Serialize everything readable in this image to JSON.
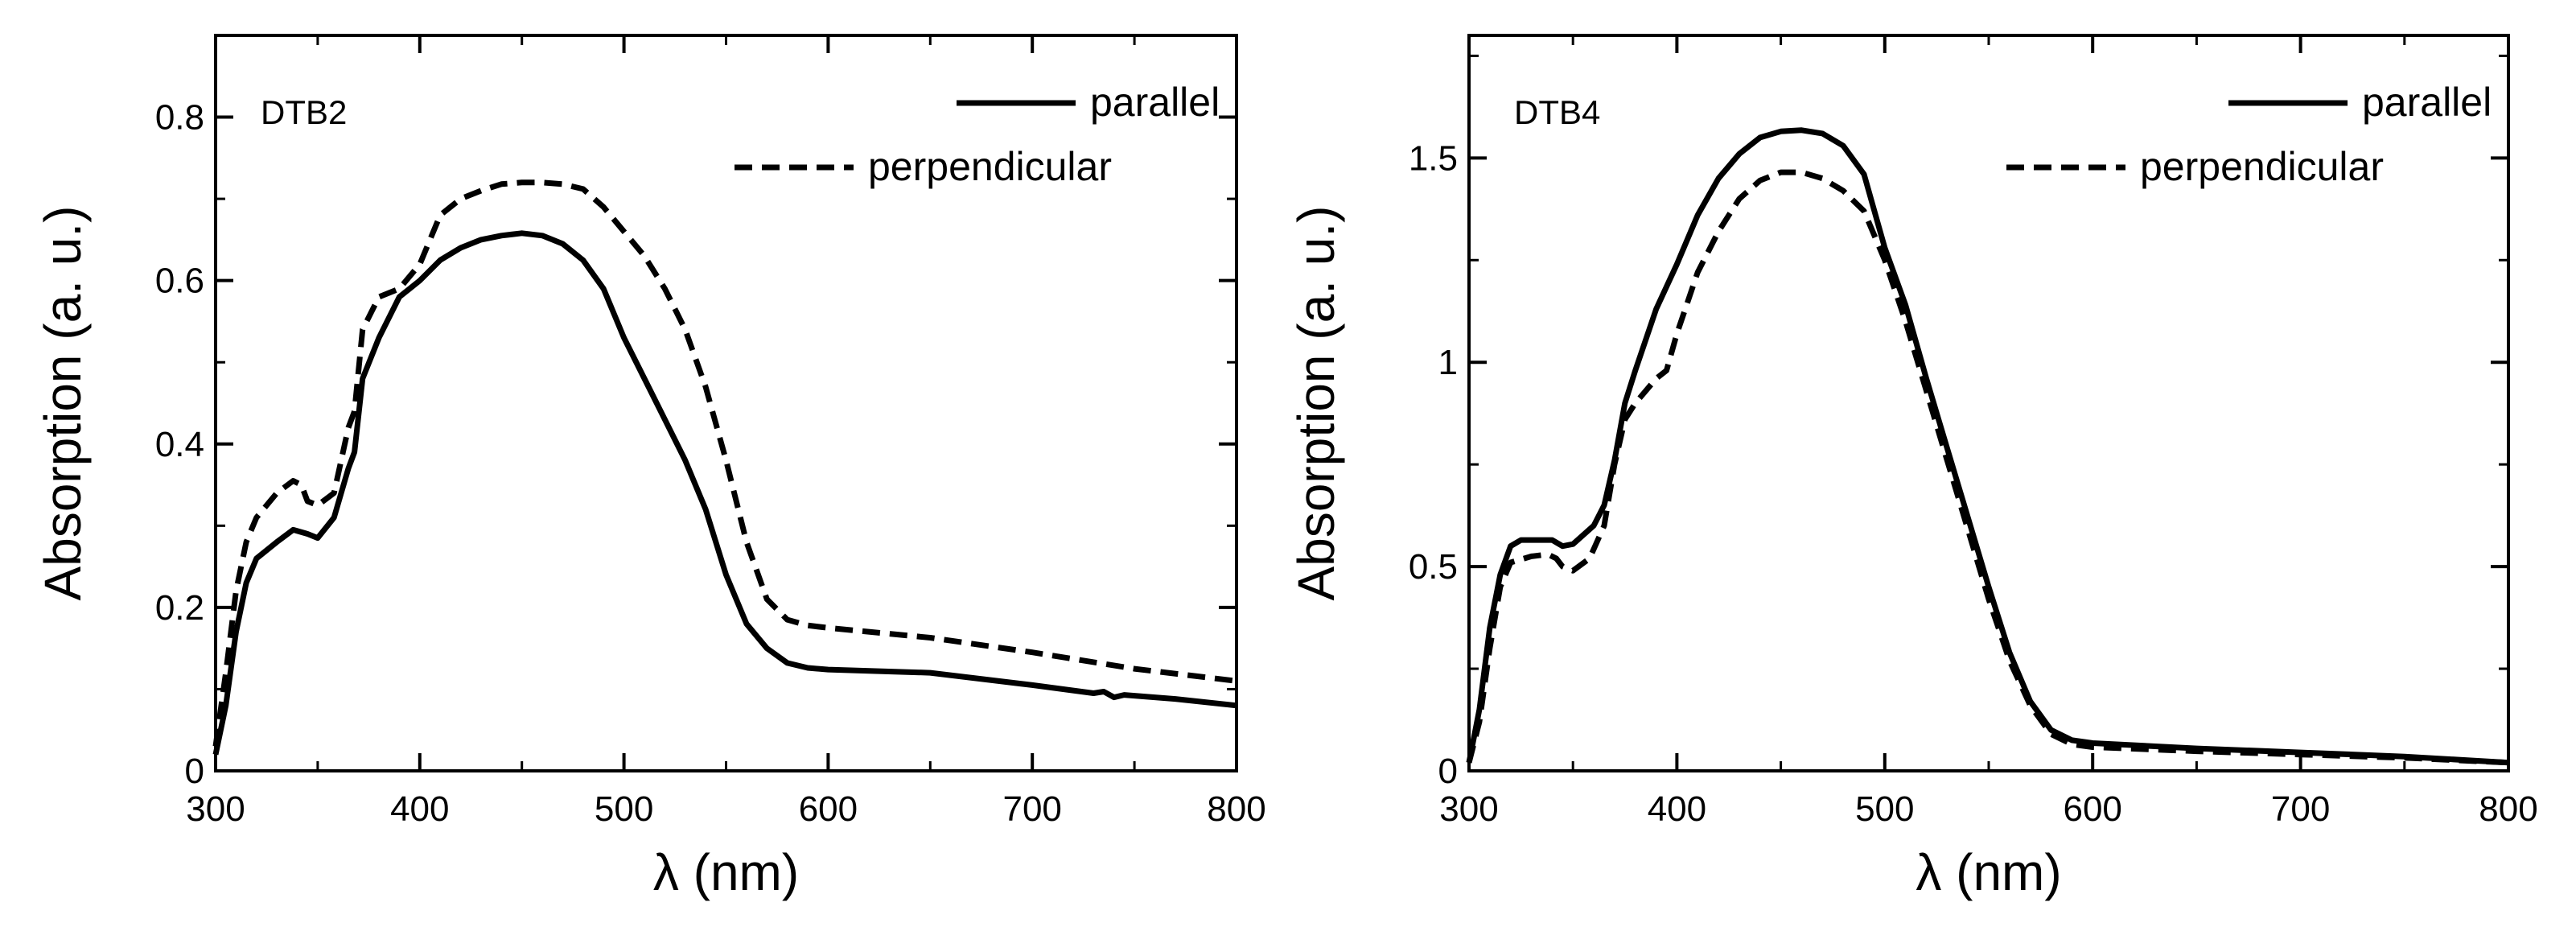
{
  "chart_data": [
    {
      "type": "line",
      "panel_label": "DTB2",
      "xlabel": "λ (nm)",
      "ylabel": "Absorption (a. u.)",
      "xlim": [
        300,
        800
      ],
      "ylim": [
        0,
        0.9
      ],
      "xticks": [
        300,
        400,
        500,
        600,
        700,
        800
      ],
      "xtick_labels": [
        "300",
        "400",
        "500",
        "600",
        "700",
        "800"
      ],
      "yticks": [
        0,
        0.2,
        0.4,
        0.6,
        0.8
      ],
      "ytick_labels": [
        "0",
        "0.2",
        "0.4",
        "0.6",
        "0.8"
      ],
      "grid": false,
      "legend_position": "top-right",
      "series": [
        {
          "name": "parallel",
          "style": "solid",
          "color": "#000000",
          "points": [
            [
              300,
              0.02
            ],
            [
              305,
              0.08
            ],
            [
              310,
              0.17
            ],
            [
              315,
              0.23
            ],
            [
              320,
              0.26
            ],
            [
              330,
              0.28
            ],
            [
              338,
              0.295
            ],
            [
              345,
              0.29
            ],
            [
              350,
              0.285
            ],
            [
              358,
              0.31
            ],
            [
              365,
              0.37
            ],
            [
              368,
              0.39
            ],
            [
              372,
              0.48
            ],
            [
              380,
              0.53
            ],
            [
              390,
              0.58
            ],
            [
              400,
              0.6
            ],
            [
              410,
              0.625
            ],
            [
              420,
              0.64
            ],
            [
              430,
              0.65
            ],
            [
              440,
              0.655
            ],
            [
              450,
              0.658
            ],
            [
              460,
              0.655
            ],
            [
              470,
              0.645
            ],
            [
              480,
              0.625
            ],
            [
              490,
              0.59
            ],
            [
              500,
              0.53
            ],
            [
              510,
              0.48
            ],
            [
              520,
              0.43
            ],
            [
              530,
              0.38
            ],
            [
              540,
              0.32
            ],
            [
              550,
              0.24
            ],
            [
              560,
              0.18
            ],
            [
              570,
              0.15
            ],
            [
              580,
              0.132
            ],
            [
              590,
              0.126
            ],
            [
              600,
              0.124
            ],
            [
              650,
              0.12
            ],
            [
              700,
              0.105
            ],
            [
              730,
              0.095
            ],
            [
              735,
              0.097
            ],
            [
              740,
              0.09
            ],
            [
              745,
              0.093
            ],
            [
              770,
              0.088
            ],
            [
              800,
              0.08
            ]
          ]
        },
        {
          "name": "perpendicular",
          "style": "dashed",
          "color": "#000000",
          "points": [
            [
              300,
              0.03
            ],
            [
              305,
              0.12
            ],
            [
              310,
              0.22
            ],
            [
              315,
              0.28
            ],
            [
              320,
              0.31
            ],
            [
              330,
              0.34
            ],
            [
              338,
              0.355
            ],
            [
              342,
              0.35
            ],
            [
              345,
              0.33
            ],
            [
              350,
              0.325
            ],
            [
              358,
              0.34
            ],
            [
              365,
              0.42
            ],
            [
              368,
              0.44
            ],
            [
              372,
              0.54
            ],
            [
              380,
              0.58
            ],
            [
              390,
              0.59
            ],
            [
              400,
              0.62
            ],
            [
              410,
              0.68
            ],
            [
              420,
              0.7
            ],
            [
              430,
              0.71
            ],
            [
              440,
              0.718
            ],
            [
              450,
              0.72
            ],
            [
              460,
              0.72
            ],
            [
              470,
              0.718
            ],
            [
              480,
              0.712
            ],
            [
              490,
              0.69
            ],
            [
              500,
              0.66
            ],
            [
              510,
              0.63
            ],
            [
              520,
              0.59
            ],
            [
              530,
              0.54
            ],
            [
              540,
              0.47
            ],
            [
              550,
              0.38
            ],
            [
              560,
              0.28
            ],
            [
              570,
              0.21
            ],
            [
              580,
              0.185
            ],
            [
              590,
              0.178
            ],
            [
              600,
              0.175
            ],
            [
              650,
              0.163
            ],
            [
              700,
              0.145
            ],
            [
              750,
              0.125
            ],
            [
              800,
              0.11
            ]
          ]
        }
      ]
    },
    {
      "type": "line",
      "panel_label": "DTB4",
      "xlabel": "λ (nm)",
      "ylabel": "Absorption (a. u.)",
      "xlim": [
        300,
        800
      ],
      "ylim": [
        0,
        1.8
      ],
      "xticks": [
        300,
        400,
        500,
        600,
        700,
        800
      ],
      "xtick_labels": [
        "300",
        "400",
        "500",
        "600",
        "700",
        "800"
      ],
      "yticks": [
        0,
        0.5,
        1.0,
        1.5
      ],
      "ytick_labels": [
        "0",
        "0.5",
        "1",
        "1.5"
      ],
      "grid": false,
      "legend_position": "top-right",
      "series": [
        {
          "name": "parallel",
          "style": "solid",
          "color": "#000000",
          "points": [
            [
              300,
              0.02
            ],
            [
              305,
              0.15
            ],
            [
              310,
              0.35
            ],
            [
              315,
              0.48
            ],
            [
              320,
              0.55
            ],
            [
              325,
              0.565
            ],
            [
              335,
              0.565
            ],
            [
              340,
              0.565
            ],
            [
              345,
              0.55
            ],
            [
              350,
              0.555
            ],
            [
              360,
              0.6
            ],
            [
              365,
              0.65
            ],
            [
              370,
              0.76
            ],
            [
              375,
              0.9
            ],
            [
              380,
              0.98
            ],
            [
              390,
              1.13
            ],
            [
              400,
              1.24
            ],
            [
              410,
              1.36
            ],
            [
              420,
              1.45
            ],
            [
              430,
              1.51
            ],
            [
              440,
              1.55
            ],
            [
              450,
              1.565
            ],
            [
              460,
              1.568
            ],
            [
              470,
              1.56
            ],
            [
              480,
              1.53
            ],
            [
              490,
              1.46
            ],
            [
              500,
              1.28
            ],
            [
              510,
              1.14
            ],
            [
              520,
              0.96
            ],
            [
              530,
              0.79
            ],
            [
              540,
              0.62
            ],
            [
              550,
              0.45
            ],
            [
              560,
              0.29
            ],
            [
              570,
              0.17
            ],
            [
              580,
              0.1
            ],
            [
              590,
              0.075
            ],
            [
              600,
              0.068
            ],
            [
              650,
              0.055
            ],
            [
              700,
              0.045
            ],
            [
              750,
              0.035
            ],
            [
              800,
              0.02
            ]
          ]
        },
        {
          "name": "perpendicular",
          "style": "dashed",
          "color": "#000000",
          "points": [
            [
              300,
              0.02
            ],
            [
              305,
              0.12
            ],
            [
              310,
              0.3
            ],
            [
              315,
              0.45
            ],
            [
              320,
              0.51
            ],
            [
              330,
              0.525
            ],
            [
              338,
              0.53
            ],
            [
              342,
              0.52
            ],
            [
              345,
              0.5
            ],
            [
              350,
              0.49
            ],
            [
              358,
              0.52
            ],
            [
              365,
              0.6
            ],
            [
              370,
              0.75
            ],
            [
              375,
              0.86
            ],
            [
              380,
              0.9
            ],
            [
              390,
              0.96
            ],
            [
              395,
              0.98
            ],
            [
              400,
              1.07
            ],
            [
              410,
              1.22
            ],
            [
              420,
              1.32
            ],
            [
              430,
              1.4
            ],
            [
              440,
              1.445
            ],
            [
              450,
              1.465
            ],
            [
              460,
              1.465
            ],
            [
              470,
              1.45
            ],
            [
              480,
              1.42
            ],
            [
              490,
              1.37
            ],
            [
              500,
              1.25
            ],
            [
              510,
              1.1
            ],
            [
              520,
              0.93
            ],
            [
              530,
              0.76
            ],
            [
              540,
              0.59
            ],
            [
              550,
              0.42
            ],
            [
              560,
              0.27
            ],
            [
              570,
              0.16
            ],
            [
              580,
              0.09
            ],
            [
              590,
              0.065
            ],
            [
              600,
              0.058
            ],
            [
              650,
              0.048
            ],
            [
              700,
              0.04
            ],
            [
              750,
              0.032
            ],
            [
              800,
              0.02
            ]
          ]
        }
      ]
    }
  ]
}
